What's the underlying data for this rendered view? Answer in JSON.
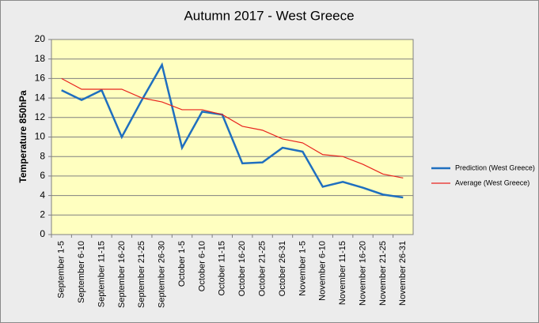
{
  "chart_data": {
    "type": "line",
    "title": "Autumn 2017 - West Greece",
    "y_label": "Temperature 850hPa",
    "categories": [
      "September 1-5",
      "September 6-10",
      "September 11-15",
      "September 16-20",
      "September 21-25",
      "September 26-30",
      "October 1-5",
      "October 6-10",
      "October 11-15",
      "October 16-20",
      "October 21-25",
      "October 26-31",
      "November 1-5",
      "November 6-10",
      "November 11-15",
      "November 16-20",
      "November 21-25",
      "November 26-31"
    ],
    "series": [
      {
        "name": "Prediction (West Greece)",
        "color": "#1f6fbf",
        "values": [
          14.8,
          13.8,
          14.8,
          10.0,
          13.8,
          17.4,
          8.9,
          12.6,
          12.3,
          7.3,
          7.4,
          8.9,
          8.5,
          4.9,
          5.4,
          4.8,
          4.1,
          3.8
        ]
      },
      {
        "name": "Average (West Greece)",
        "color": "#e8231e",
        "values": [
          16.0,
          14.9,
          14.9,
          14.9,
          14.0,
          13.6,
          12.8,
          12.8,
          12.3,
          11.1,
          10.7,
          9.8,
          9.4,
          8.2,
          8.0,
          7.2,
          6.2,
          5.8
        ]
      }
    ],
    "ylim": [
      0,
      20
    ],
    "yticks": [
      0,
      2,
      4,
      6,
      8,
      10,
      12,
      14,
      16,
      18,
      20
    ],
    "grid": true,
    "legend": "right"
  }
}
